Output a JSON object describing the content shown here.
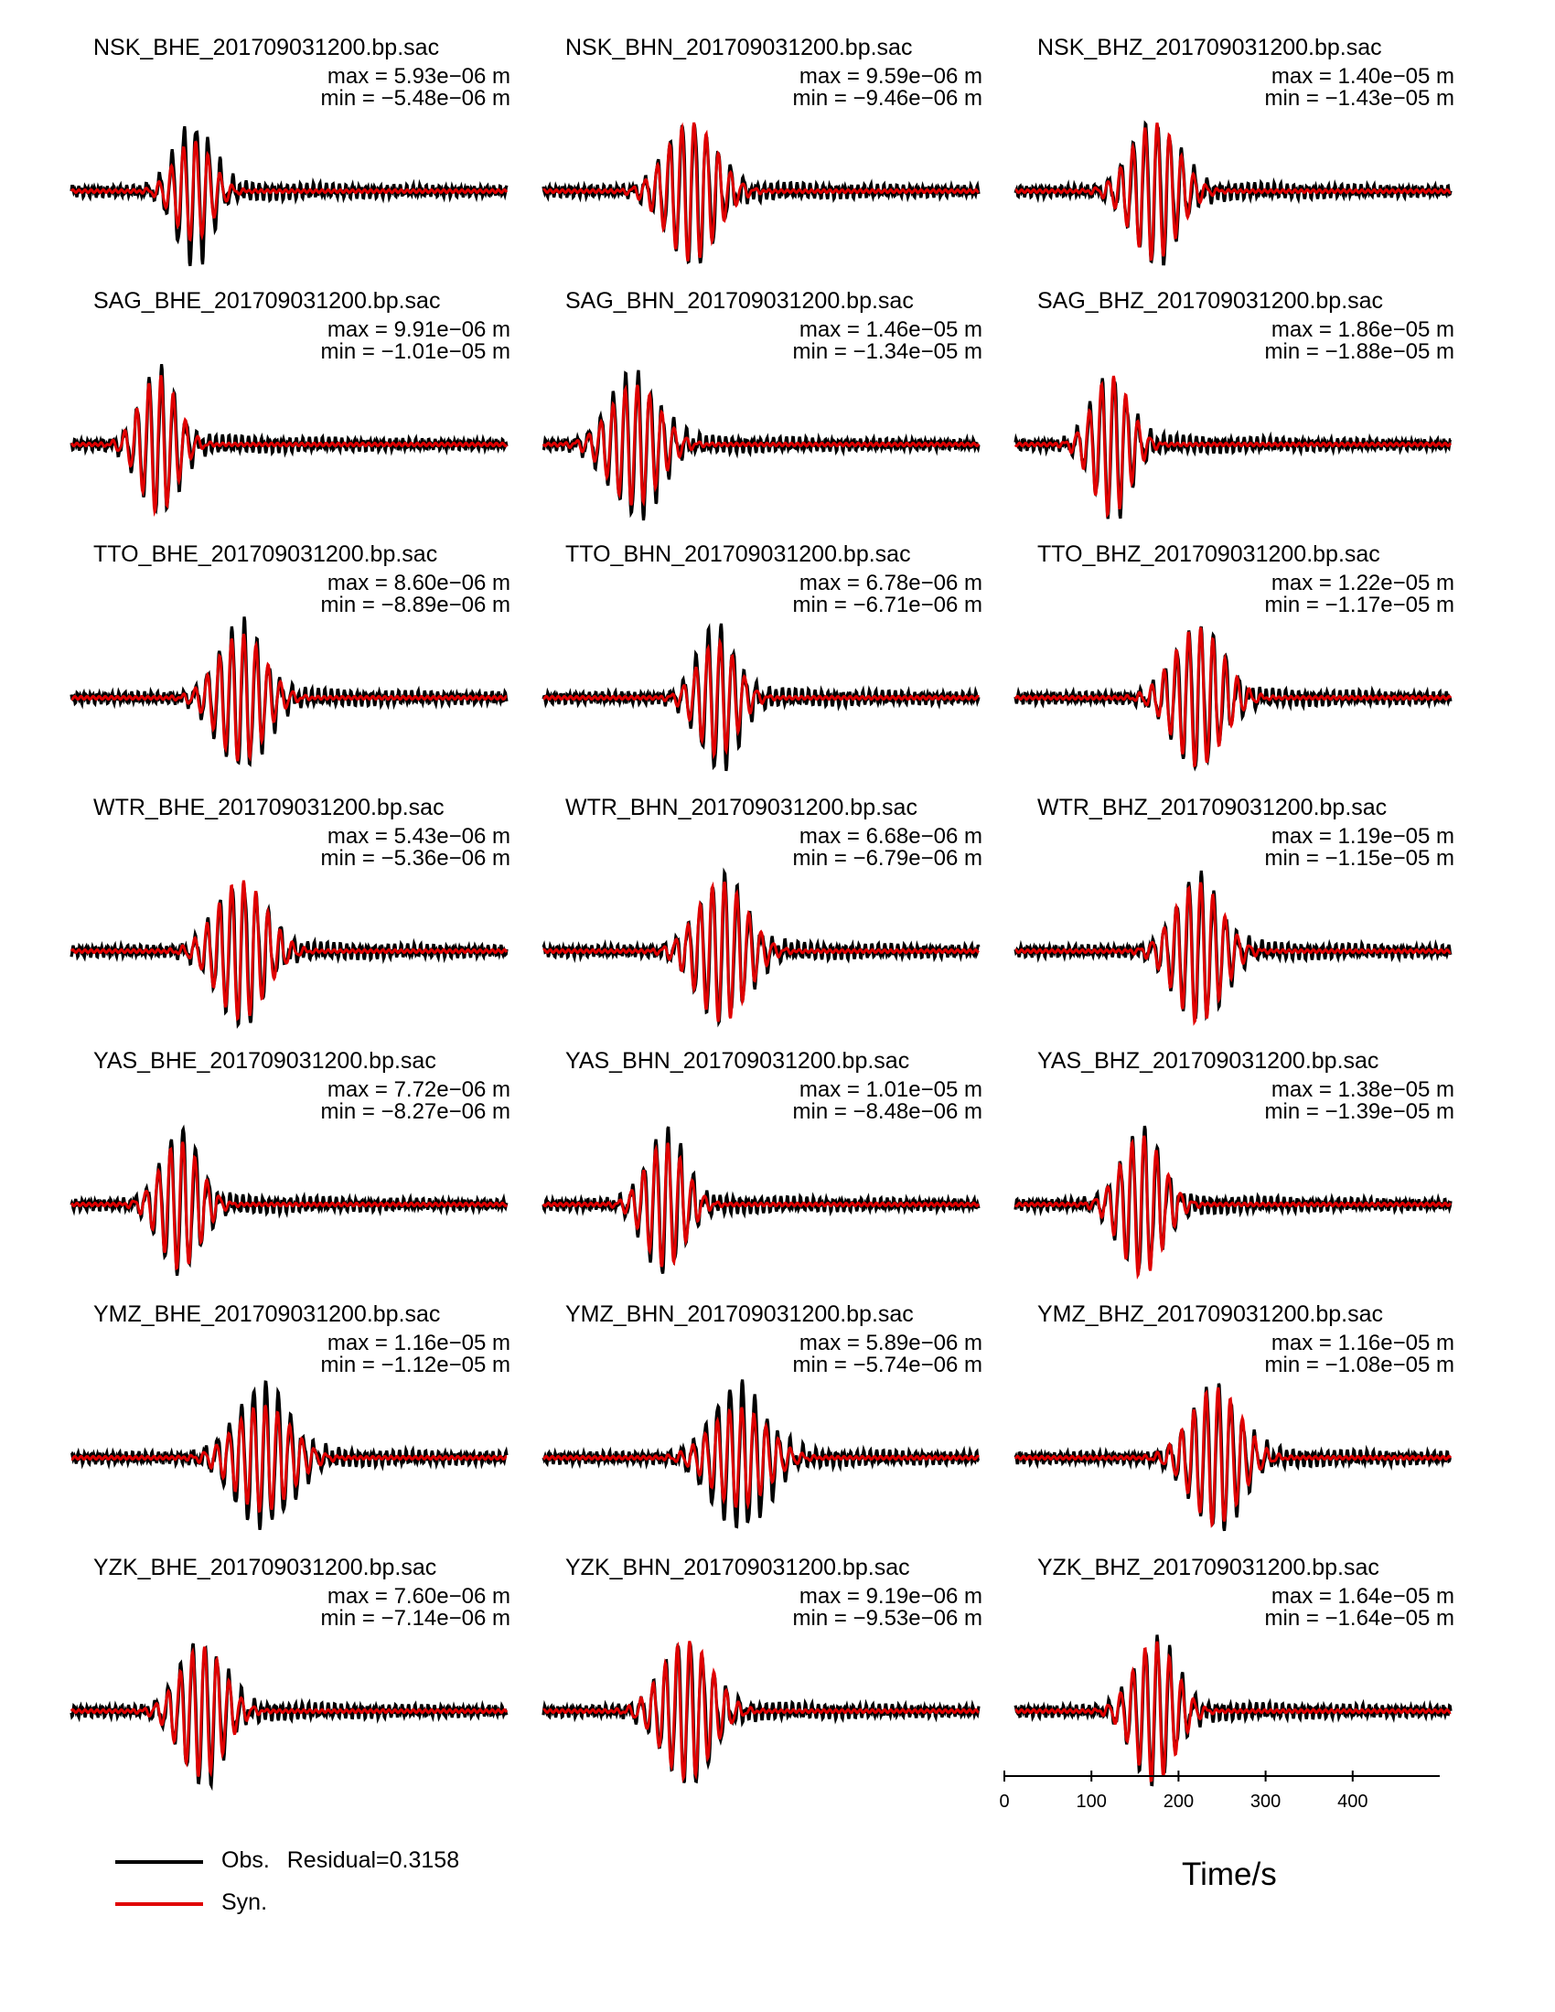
{
  "colors": {
    "observed": "#000000",
    "synthetic": "#e00000"
  },
  "stations": [
    "NSK",
    "SAG",
    "TTO",
    "WTR",
    "YAS",
    "YMZ",
    "YZK"
  ],
  "components": [
    "BHE",
    "BHN",
    "BHZ"
  ],
  "panels": [
    {
      "title": "NSK_BHE_201709031200.bp.sac",
      "max": "max = 5.93e−06 m",
      "min": "min = −5.48e−06 m"
    },
    {
      "title": "NSK_BHN_201709031200.bp.sac",
      "max": "max = 9.59e−06 m",
      "min": "min = −9.46e−06 m"
    },
    {
      "title": "NSK_BHZ_201709031200.bp.sac",
      "max": "max = 1.40e−05 m",
      "min": "min = −1.43e−05 m"
    },
    {
      "title": "SAG_BHE_201709031200.bp.sac",
      "max": "max = 9.91e−06 m",
      "min": "min = −1.01e−05 m"
    },
    {
      "title": "SAG_BHN_201709031200.bp.sac",
      "max": "max = 1.46e−05 m",
      "min": "min = −1.34e−05 m"
    },
    {
      "title": "SAG_BHZ_201709031200.bp.sac",
      "max": "max = 1.86e−05 m",
      "min": "min = −1.88e−05 m"
    },
    {
      "title": "TTO_BHE_201709031200.bp.sac",
      "max": "max = 8.60e−06 m",
      "min": "min = −8.89e−06 m"
    },
    {
      "title": "TTO_BHN_201709031200.bp.sac",
      "max": "max = 6.78e−06 m",
      "min": "min = −6.71e−06 m"
    },
    {
      "title": "TTO_BHZ_201709031200.bp.sac",
      "max": "max = 1.22e−05 m",
      "min": "min = −1.17e−05 m"
    },
    {
      "title": "WTR_BHE_201709031200.bp.sac",
      "max": "max = 5.43e−06 m",
      "min": "min = −5.36e−06 m"
    },
    {
      "title": "WTR_BHN_201709031200.bp.sac",
      "max": "max = 6.68e−06 m",
      "min": "min = −6.79e−06 m"
    },
    {
      "title": "WTR_BHZ_201709031200.bp.sac",
      "max": "max = 1.19e−05 m",
      "min": "min = −1.15e−05 m"
    },
    {
      "title": "YAS_BHE_201709031200.bp.sac",
      "max": "max = 7.72e−06 m",
      "min": "min = −8.27e−06 m"
    },
    {
      "title": "YAS_BHN_201709031200.bp.sac",
      "max": "max = 1.01e−05 m",
      "min": "min = −8.48e−06 m"
    },
    {
      "title": "YAS_BHZ_201709031200.bp.sac",
      "max": "max = 1.38e−05 m",
      "min": "min = −1.39e−05 m"
    },
    {
      "title": "YMZ_BHE_201709031200.bp.sac",
      "max": "max = 1.16e−05 m",
      "min": "min = −1.12e−05 m"
    },
    {
      "title": "YMZ_BHN_201709031200.bp.sac",
      "max": "max = 5.89e−06 m",
      "min": "min = −5.74e−06 m"
    },
    {
      "title": "YMZ_BHZ_201709031200.bp.sac",
      "max": "max = 1.16e−05 m",
      "min": "min = −1.08e−05 m"
    },
    {
      "title": "YZK_BHE_201709031200.bp.sac",
      "max": "max = 7.60e−06 m",
      "min": "min = −7.14e−06 m"
    },
    {
      "title": "YZK_BHN_201709031200.bp.sac",
      "max": "max = 9.19e−06 m",
      "min": "min = −9.53e−06 m"
    },
    {
      "title": "YZK_BHZ_201709031200.bp.sac",
      "max": "max = 1.64e−05 m",
      "min": "min = −1.64e−05 m"
    }
  ],
  "legend": {
    "observed_label": "Obs.",
    "residual_label": "Residual=0.3158",
    "synthetic_label": "Syn."
  },
  "chart_data": {
    "type": "line",
    "description_of_traces": "Each panel shows an observed (black) and synthetic (red) band-passed waveform; time axis 0–500 s.",
    "x_axis": {
      "label": "Time/s",
      "ticks": [
        0,
        100,
        200,
        300,
        400
      ],
      "range": [
        0,
        500
      ]
    },
    "series": [
      {
        "name": "Obs.",
        "color": "#000000"
      },
      {
        "name": "Syn.",
        "color": "#e00000"
      }
    ],
    "residual": 0.3158,
    "wave_packets": [
      {
        "station": "NSK",
        "component": "BHE",
        "center_s": 140,
        "width_s": 30,
        "obs_amplitude": 1.0,
        "syn_amplitude": 0.7
      },
      {
        "station": "NSK",
        "component": "BHN",
        "center_s": 170,
        "width_s": 40,
        "obs_amplitude": 1.0,
        "syn_amplitude": 0.98
      },
      {
        "station": "NSK",
        "component": "BHZ",
        "center_s": 160,
        "width_s": 38,
        "obs_amplitude": 1.0,
        "syn_amplitude": 0.97
      },
      {
        "station": "SAG",
        "component": "BHE",
        "center_s": 100,
        "width_s": 30,
        "obs_amplitude": 1.0,
        "syn_amplitude": 0.97
      },
      {
        "station": "SAG",
        "component": "BHN",
        "center_s": 105,
        "width_s": 40,
        "obs_amplitude": 1.0,
        "syn_amplitude": 0.85
      },
      {
        "station": "SAG",
        "component": "BHZ",
        "center_s": 110,
        "width_s": 30,
        "obs_amplitude": 1.0,
        "syn_amplitude": 0.99
      },
      {
        "station": "TTO",
        "component": "BHE",
        "center_s": 195,
        "width_s": 38,
        "obs_amplitude": 1.0,
        "syn_amplitude": 0.9
      },
      {
        "station": "TTO",
        "component": "BHN",
        "center_s": 200,
        "width_s": 32,
        "obs_amplitude": 1.0,
        "syn_amplitude": 0.8
      },
      {
        "station": "TTO",
        "component": "BHZ",
        "center_s": 210,
        "width_s": 40,
        "obs_amplitude": 1.0,
        "syn_amplitude": 0.98
      },
      {
        "station": "WTR",
        "component": "BHE",
        "center_s": 195,
        "width_s": 40,
        "obs_amplitude": 1.0,
        "syn_amplitude": 0.98
      },
      {
        "station": "WTR",
        "component": "BHN",
        "center_s": 205,
        "width_s": 40,
        "obs_amplitude": 1.0,
        "syn_amplitude": 0.99
      },
      {
        "station": "WTR",
        "component": "BHZ",
        "center_s": 210,
        "width_s": 38,
        "obs_amplitude": 1.0,
        "syn_amplitude": 0.99
      },
      {
        "station": "YAS",
        "component": "BHE",
        "center_s": 125,
        "width_s": 32,
        "obs_amplitude": 1.0,
        "syn_amplitude": 0.9
      },
      {
        "station": "YAS",
        "component": "BHN",
        "center_s": 140,
        "width_s": 32,
        "obs_amplitude": 1.0,
        "syn_amplitude": 0.88
      },
      {
        "station": "YAS",
        "component": "BHZ",
        "center_s": 145,
        "width_s": 34,
        "obs_amplitude": 1.0,
        "syn_amplitude": 0.99
      },
      {
        "station": "YMZ",
        "component": "BHE",
        "center_s": 220,
        "width_s": 45,
        "obs_amplitude": 1.0,
        "syn_amplitude": 0.75
      },
      {
        "station": "YMZ",
        "component": "BHN",
        "center_s": 225,
        "width_s": 45,
        "obs_amplitude": 1.0,
        "syn_amplitude": 0.7
      },
      {
        "station": "YMZ",
        "component": "BHZ",
        "center_s": 230,
        "width_s": 40,
        "obs_amplitude": 1.0,
        "syn_amplitude": 0.97
      },
      {
        "station": "YZK",
        "component": "BHE",
        "center_s": 150,
        "width_s": 36,
        "obs_amplitude": 1.0,
        "syn_amplitude": 0.92
      },
      {
        "station": "YZK",
        "component": "BHN",
        "center_s": 165,
        "width_s": 40,
        "obs_amplitude": 1.0,
        "syn_amplitude": 0.97
      },
      {
        "station": "YZK",
        "component": "BHZ",
        "center_s": 160,
        "width_s": 34,
        "obs_amplitude": 1.0,
        "syn_amplitude": 0.99
      }
    ]
  }
}
